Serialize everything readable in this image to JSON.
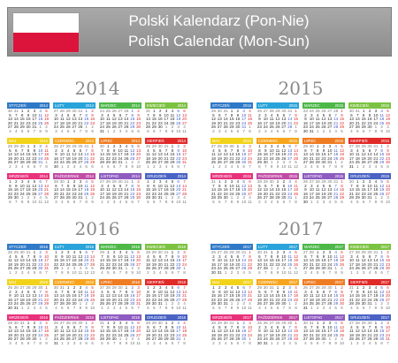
{
  "header": {
    "title_pl": "Polski Kalendarz (Pon-Nie)",
    "title_en": "Polish Calendar (Mon-Sun)",
    "flag_colors": [
      "#ffffff",
      "#dc143c"
    ]
  },
  "weekdays_short": [
    "P",
    "W",
    "Ś",
    "C",
    "P",
    "S",
    "N"
  ],
  "month_names": [
    "STYCZEŃ",
    "LUTY",
    "MARZEC",
    "KWIECIEŃ",
    "MAJ",
    "CZERWIEC",
    "LIPIEC",
    "SIERPIEŃ",
    "WRZESIEŃ",
    "PAŹDZIERNIK",
    "LISTOPAD",
    "GRUDZIEŃ"
  ],
  "month_colors": [
    "#2f79c7",
    "#29a3d9",
    "#4db848",
    "#7cc242",
    "#f2d31a",
    "#f7a51e",
    "#ef7c23",
    "#e02a28",
    "#e8327c",
    "#c04ca6",
    "#8e5cc0",
    "#4a63c4"
  ],
  "day_colors": {
    "weekday": "#2a2a2a",
    "saturday": "#3c5cc8",
    "sunday": "#dd2a2a",
    "adjacent": "#777777"
  },
  "years": [
    "2014",
    "2015",
    "2016",
    "2017"
  ]
}
